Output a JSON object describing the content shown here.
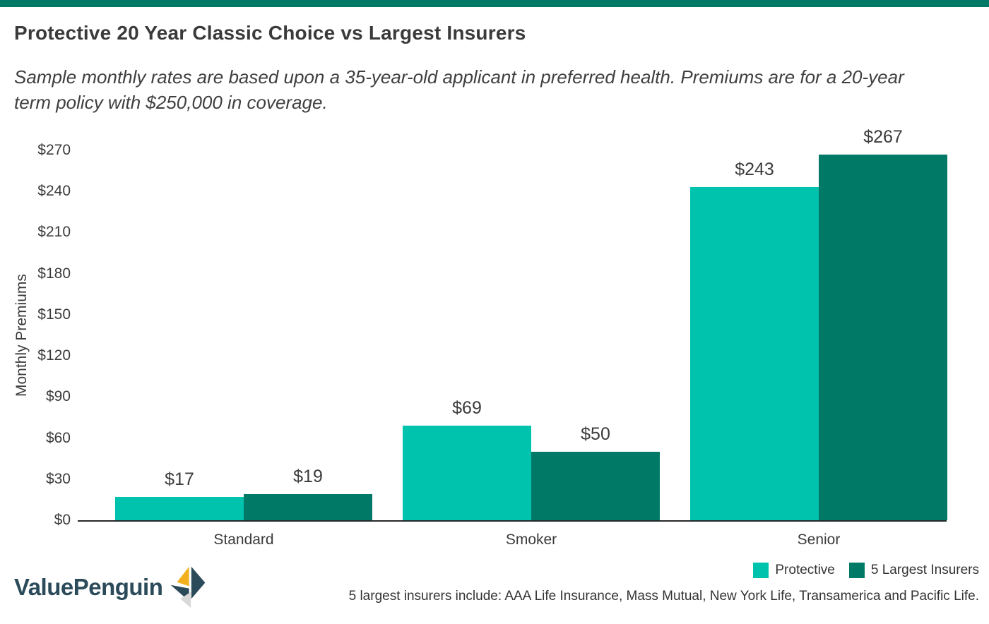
{
  "page": {
    "top_bar_color": "#007a67",
    "background_color": "#ffffff"
  },
  "chart_data": {
    "type": "bar",
    "title": "Protective 20 Year Classic Choice vs Largest Insurers",
    "subtitle": "Sample monthly rates are based upon a 35-year-old applicant in preferred health. Premiums are for a 20-year term policy with $250,000 in coverage.",
    "subtitle_line1": "Sample monthly rates are based upon a 35-year-old applicant in preferred health. Premiums are for a 20-year",
    "subtitle_line2": "term policy with $250,000 in coverage.",
    "xlabel": "",
    "ylabel": "Monthly Premiums",
    "categories": [
      "Standard",
      "Smoker",
      "Senior"
    ],
    "series": [
      {
        "name": "Protective",
        "color": "#00c3ae",
        "values": [
          17,
          69,
          243
        ]
      },
      {
        "name": "5 Largest Insurers",
        "color": "#007a67",
        "values": [
          19,
          50,
          267
        ]
      }
    ],
    "value_label_prefix": "$",
    "yticks": [
      0,
      30,
      60,
      90,
      120,
      150,
      180,
      210,
      240,
      270
    ],
    "ytick_labels": [
      "$0",
      "$30",
      "$60",
      "$90",
      "$120",
      "$150",
      "$180",
      "$210",
      "$240",
      "$270"
    ],
    "ylim": [
      0,
      270
    ],
    "grid": false,
    "legend_position": "bottom-right"
  },
  "footer": {
    "logo_text": "ValuePenguin",
    "logo_colors": {
      "navy": "#2b4a5a",
      "gold": "#f2b01e",
      "gray": "#d9d9d9"
    },
    "note": "5 largest insurers include: AAA Life Insurance, Mass Mutual, New York Life, Transamerica and Pacific Life."
  }
}
